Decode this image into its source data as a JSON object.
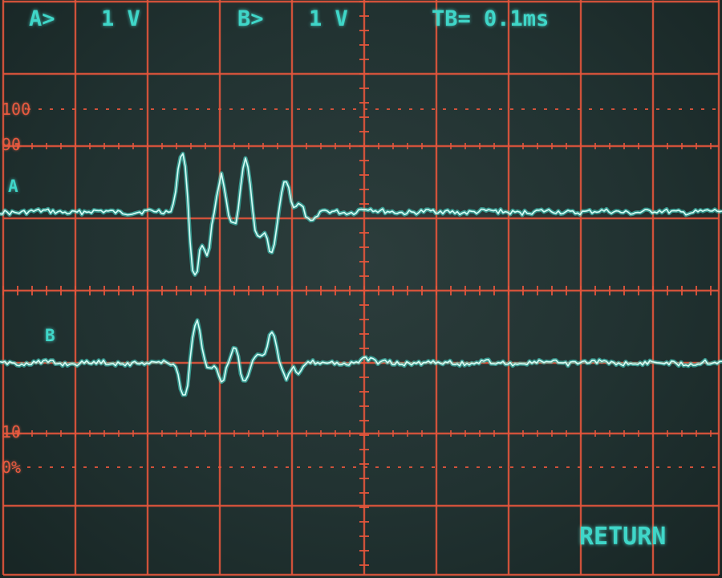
{
  "header": {
    "channel_a_label": "A>",
    "channel_a_scale": "1 V",
    "channel_b_label": "B>",
    "channel_b_scale": "1 V",
    "timebase": "TB= 0.1ms"
  },
  "trace_labels": {
    "a": "A",
    "b": "B"
  },
  "graticule_markers": {
    "m100": "100",
    "m90": "90",
    "m10": "10",
    "m0": "0%"
  },
  "softkey": {
    "return_label": "RETURN"
  },
  "colors": {
    "graticule": "#e2553c",
    "trace": "#46e6d6",
    "trace_core": "#d8fff8",
    "screen": "#233433"
  },
  "scope_settings": {
    "divisions_x": 10,
    "divisions_y": 8,
    "channel_a_volts_per_div": 1,
    "channel_b_volts_per_div": 1,
    "timebase_seconds_per_div": 0.0001
  }
}
